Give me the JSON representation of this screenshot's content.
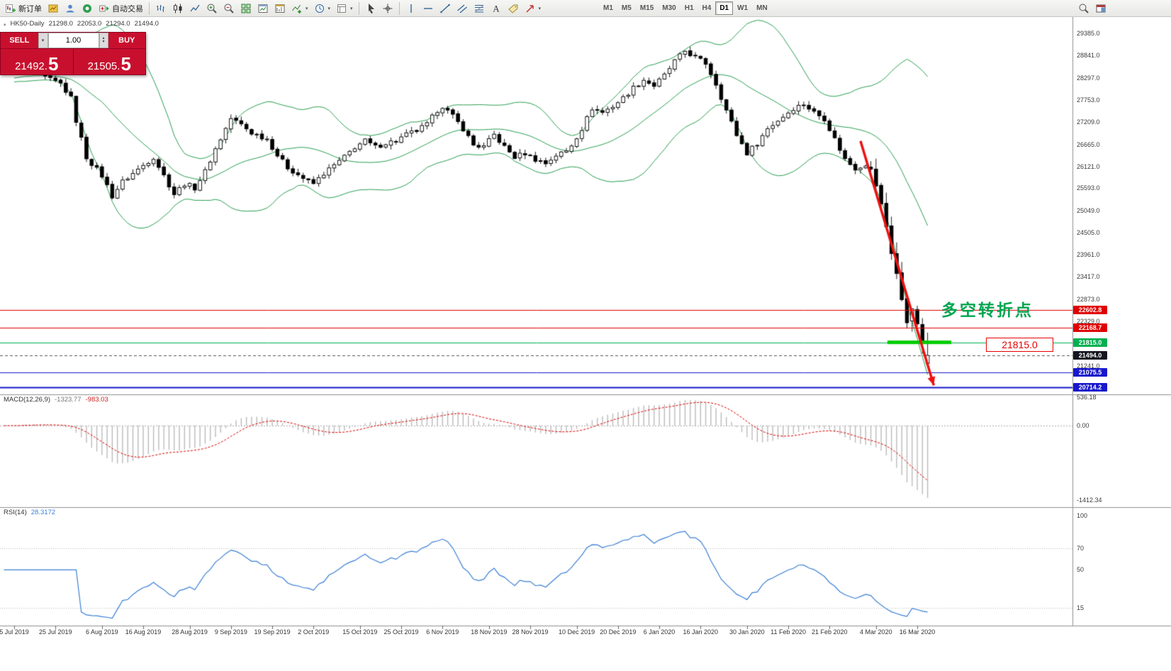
{
  "colors": {
    "toolbar_bg": "#efefec",
    "panel_red": "#c8102e",
    "bollinger_green": "#2aa052",
    "macd_bar_grey": "#bbbbbb",
    "macd_signal_red": "#dd0000",
    "rsi_blue": "#3a7fd5",
    "annotation_green": "#00a550",
    "callout_red": "#e60000",
    "arrow_red": "#ee1111",
    "support_green": "#00cc00"
  },
  "icons": {
    "dropdown_arrow": "▾",
    "spinner_up": "▴",
    "spinner_down": "▾",
    "symbol_marker": "▴"
  },
  "toolbar": {
    "timeframes": [
      "M1",
      "M5",
      "M15",
      "M30",
      "H1",
      "H4",
      "D1",
      "W1",
      "MN"
    ],
    "active_timeframe": "D1",
    "groups": [
      {
        "buttons": [
          {
            "name": "new-order-button",
            "icon": "new-order-icon",
            "label": "新订单"
          },
          {
            "name": "charts-button",
            "icon": "gold-chart-icon"
          },
          {
            "name": "profile-button",
            "icon": "profile-icon"
          },
          {
            "name": "community-button",
            "icon": "community-icon"
          },
          {
            "name": "autotrading-button",
            "icon": "autotrading-icon",
            "label": "自动交易"
          }
        ]
      },
      {
        "buttons": [
          {
            "name": "bar-chart-button",
            "icon": "bar-chart-icon"
          },
          {
            "name": "candlestick-chart-button",
            "icon": "candlestick-icon"
          },
          {
            "name": "line-chart-button",
            "icon": "line-chart-icon"
          },
          {
            "name": "zoom-in-button",
            "icon": "zoom-in-icon"
          },
          {
            "name": "zoom-out-button",
            "icon": "zoom-out-icon"
          },
          {
            "name": "tile-windows-button",
            "icon": "tile-windows-icon"
          },
          {
            "name": "new-chart-button",
            "icon": "new-chart-icon"
          },
          {
            "name": "chart-shift-button",
            "icon": "chart-shift-icon"
          },
          {
            "name": "indicators-button",
            "icon": "indicators-icon",
            "dropdown": true
          },
          {
            "name": "periods-button",
            "icon": "clock-icon",
            "dropdown": true
          },
          {
            "name": "templates-button",
            "icon": "template-icon",
            "dropdown": true
          }
        ]
      },
      {
        "buttons": [
          {
            "name": "cursor-button",
            "icon": "cursor-icon"
          },
          {
            "name": "crosshair-button",
            "icon": "crosshair-icon"
          }
        ]
      },
      {
        "buttons": [
          {
            "name": "vertical-line-button",
            "icon": "vertical-line-icon"
          },
          {
            "name": "horizontal-line-button",
            "icon": "horizontal-line-icon"
          },
          {
            "name": "trendline-button",
            "icon": "trendline-icon"
          },
          {
            "name": "channel-button",
            "icon": "channel-icon"
          },
          {
            "name": "fibonacci-button",
            "icon": "fibonacci-icon"
          },
          {
            "name": "text-button",
            "icon": "text-icon"
          },
          {
            "name": "label-button",
            "icon": "label-icon"
          },
          {
            "name": "shapes-button",
            "icon": "arrow-shapes-icon",
            "dropdown": true
          }
        ]
      }
    ],
    "right_buttons": [
      {
        "name": "search-button",
        "icon": "search-icon"
      },
      {
        "name": "window-button",
        "icon": "window-icon"
      }
    ]
  },
  "trade_panel": {
    "sell_label": "SELL",
    "buy_label": "BUY",
    "volume": "1.00",
    "sell_price": "21492.",
    "sell_pip": "5",
    "buy_price": "21505.",
    "buy_pip": "5",
    "panel_color": "#c8102e"
  },
  "chart_header": {
    "symbol_period": "HK50-Daily",
    "open": "21298.0",
    "high": "22053.0",
    "low": "21294.0",
    "close": "21494.0"
  },
  "price_axis": {
    "labels": [
      "29385.0",
      "28841.0",
      "28297.0",
      "27753.0",
      "27209.0",
      "26665.0",
      "26121.0",
      "25593.0",
      "25049.0",
      "24505.0",
      "23961.0",
      "23417.0",
      "22873.0",
      "22329.0",
      "21241.0"
    ],
    "tags": [
      {
        "text": "22602.8",
        "price": 22602.8,
        "bg": "#e00000"
      },
      {
        "text": "22168.7",
        "price": 22168.7,
        "bg": "#e00000"
      },
      {
        "text": "21815.0",
        "price": 21815.0,
        "bg": "#00b050"
      },
      {
        "text": "21494.0",
        "price": 21494.0,
        "bg": "#15151f"
      },
      {
        "text": "21075.5",
        "price": 21075.5,
        "bg": "#1818cc"
      },
      {
        "text": "20714.2",
        "price": 20714.2,
        "bg": "#1818cc"
      }
    ]
  },
  "macd_panel": {
    "label": "MACD(12,26,9)",
    "value_main": "-1323.77",
    "value_signal": "-983.03",
    "axis": [
      {
        "text": "536.18",
        "value": 536.18
      },
      {
        "text": "0.00",
        "value": 0
      },
      {
        "text": "-1412.34",
        "value": -1412.34
      }
    ]
  },
  "rsi_panel": {
    "label": "RSI(14)",
    "value": "28.3172",
    "axis": [
      {
        "text": "100",
        "value": 100
      },
      {
        "text": "70",
        "value": 70
      },
      {
        "text": "50",
        "value": 50
      },
      {
        "text": "15",
        "value": 15
      }
    ],
    "levels": [
      70,
      15
    ]
  },
  "time_axis": {
    "labels": [
      {
        "text": "5 Jul 2019",
        "index": 2
      },
      {
        "text": "25 Jul 2019",
        "index": 10
      },
      {
        "text": "6 Aug 2019",
        "index": 19
      },
      {
        "text": "16 Aug 2019",
        "index": 27
      },
      {
        "text": "28 Aug 2019",
        "index": 36
      },
      {
        "text": "9 Sep 2019",
        "index": 44
      },
      {
        "text": "19 Sep 2019",
        "index": 52
      },
      {
        "text": "2 Oct 2019",
        "index": 60
      },
      {
        "text": "15 Oct 2019",
        "index": 69
      },
      {
        "text": "25 Oct 2019",
        "index": 77
      },
      {
        "text": "6 Nov 2019",
        "index": 85
      },
      {
        "text": "18 Nov 2019",
        "index": 94
      },
      {
        "text": "28 Nov 2019",
        "index": 102
      },
      {
        "text": "10 Dec 2019",
        "index": 111
      },
      {
        "text": "20 Dec 2019",
        "index": 119
      },
      {
        "text": "6 Jan 2020",
        "index": 127
      },
      {
        "text": "16 Jan 2020",
        "index": 135
      },
      {
        "text": "30 Jan 2020",
        "index": 144
      },
      {
        "text": "11 Feb 2020",
        "index": 152
      },
      {
        "text": "21 Feb 2020",
        "index": 160
      },
      {
        "text": "4 Mar 2020",
        "index": 169
      },
      {
        "text": "16 Mar 2020",
        "index": 177
      }
    ]
  },
  "annotations": {
    "turning_point_text": "多空转折点",
    "price_callout": "21815.0",
    "arrow": {
      "from_index": 166,
      "from_price": 26750,
      "to_index": 180.2,
      "to_price": 20760
    },
    "support_segment": {
      "price": 21815.0,
      "from_index": 171.2,
      "to_index": 183.6
    }
  },
  "chart_data": {
    "type": "candlestick",
    "symbol": "HK50",
    "period": "Daily",
    "last_ohlc": {
      "open": 21298.0,
      "high": 22053.0,
      "low": 21294.0,
      "close": 21494.0
    },
    "num_candles": 180,
    "first_visible_candle": 8,
    "price_scale": {
      "top_price": 29785,
      "bottom_price": 20540
    },
    "close_keypoints": [
      [
        0,
        28250
      ],
      [
        4,
        28380
      ],
      [
        8,
        28300
      ],
      [
        11,
        28150
      ],
      [
        13,
        27800
      ],
      [
        14,
        27250
      ],
      [
        16,
        26350
      ],
      [
        19,
        25900
      ],
      [
        21,
        25400
      ],
      [
        23,
        25750
      ],
      [
        27,
        26150
      ],
      [
        29,
        26350
      ],
      [
        31,
        25900
      ],
      [
        33,
        25450
      ],
      [
        35,
        25700
      ],
      [
        37,
        25600
      ],
      [
        39,
        26000
      ],
      [
        41,
        26550
      ],
      [
        43,
        27050
      ],
      [
        44,
        27300
      ],
      [
        46,
        27150
      ],
      [
        48,
        26950
      ],
      [
        51,
        26800
      ],
      [
        53,
        26400
      ],
      [
        55,
        26100
      ],
      [
        59,
        25750
      ],
      [
        60,
        25700
      ],
      [
        62,
        25950
      ],
      [
        64,
        26150
      ],
      [
        66,
        26350
      ],
      [
        68,
        26600
      ],
      [
        70,
        26750
      ],
      [
        72,
        26600
      ],
      [
        74,
        26700
      ],
      [
        76,
        26750
      ],
      [
        78,
        26900
      ],
      [
        80,
        27000
      ],
      [
        82,
        27150
      ],
      [
        84,
        27500
      ],
      [
        85,
        27600
      ],
      [
        87,
        27350
      ],
      [
        89,
        27050
      ],
      [
        91,
        26650
      ],
      [
        93,
        26600
      ],
      [
        95,
        26900
      ],
      [
        97,
        26600
      ],
      [
        99,
        26350
      ],
      [
        101,
        26450
      ],
      [
        103,
        26300
      ],
      [
        105,
        26200
      ],
      [
        107,
        26400
      ],
      [
        109,
        26500
      ],
      [
        110,
        26650
      ],
      [
        112,
        27050
      ],
      [
        114,
        27550
      ],
      [
        116,
        27450
      ],
      [
        118,
        27600
      ],
      [
        120,
        27800
      ],
      [
        122,
        28050
      ],
      [
        124,
        28250
      ],
      [
        126,
        28100
      ],
      [
        128,
        28350
      ],
      [
        130,
        28700
      ],
      [
        132,
        28950
      ],
      [
        134,
        28800
      ],
      [
        136,
        28650
      ],
      [
        138,
        28150
      ],
      [
        140,
        27500
      ],
      [
        142,
        26900
      ],
      [
        144,
        26450
      ],
      [
        146,
        26700
      ],
      [
        148,
        27050
      ],
      [
        150,
        27250
      ],
      [
        151,
        27350
      ],
      [
        153,
        27550
      ],
      [
        155,
        27650
      ],
      [
        157,
        27450
      ],
      [
        159,
        27300
      ],
      [
        161,
        26800
      ],
      [
        163,
        26300
      ],
      [
        165,
        26050
      ],
      [
        167,
        26150
      ],
      [
        168,
        26050
      ],
      [
        169,
        25650
      ],
      [
        170,
        25200
      ],
      [
        171,
        24650
      ],
      [
        172,
        24000
      ],
      [
        173,
        23500
      ],
      [
        174,
        22850
      ],
      [
        175,
        22300
      ],
      [
        176,
        22650
      ],
      [
        177,
        22250
      ],
      [
        178,
        21800
      ],
      [
        179,
        21494
      ]
    ],
    "indicators": {
      "bollinger": {
        "period": 20,
        "deviation": 2
      },
      "macd": {
        "fast": 12,
        "slow": 26,
        "signal": 9
      },
      "rsi": {
        "period": 14
      }
    },
    "hlines": [
      {
        "price": 22602.8,
        "color": "#e00000",
        "width": 1,
        "style": "solid"
      },
      {
        "price": 22168.7,
        "color": "#e00000",
        "width": 1,
        "style": "solid"
      },
      {
        "price": 21815.0,
        "color": "#00b050",
        "width": 1,
        "style": "solid"
      },
      {
        "price": 21494.0,
        "color": "#555555",
        "width": 1,
        "style": "dash"
      },
      {
        "price": 21075.5,
        "color": "#1818cc",
        "width": 1,
        "style": "solid"
      },
      {
        "price": 20714.2,
        "color": "#1818cc",
        "width": 2,
        "style": "solid"
      }
    ],
    "current_price": 21494.0
  }
}
